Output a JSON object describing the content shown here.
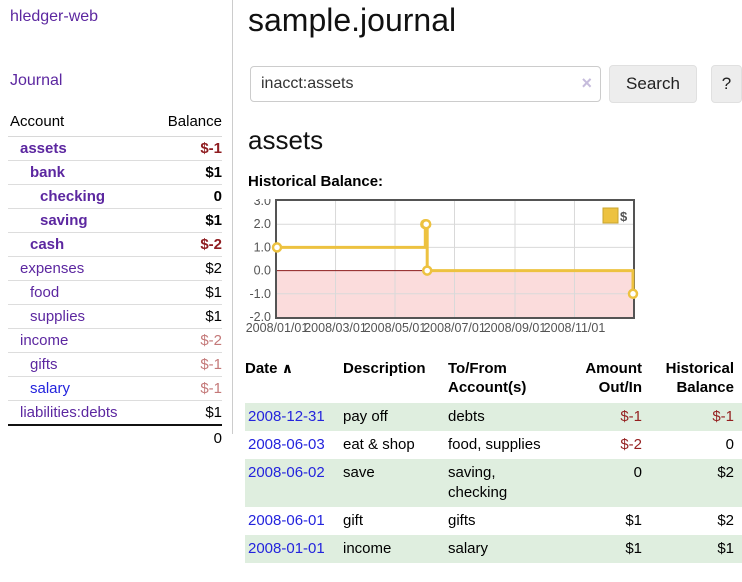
{
  "colors": {
    "link_purple": "#5c27a0",
    "link_blue": "#2424dd",
    "negative_dark": "#8f1d21",
    "negative_light": "#c47979",
    "row_green": "#dfeedf",
    "series_gold": "#edc240"
  },
  "sidebar": {
    "app_title": "hledger-web",
    "journal_link": "Journal",
    "table": {
      "account_header": "Account",
      "balance_header": "Balance",
      "rows": [
        {
          "account": "assets",
          "balance": "$-1",
          "indent": 0,
          "bold": true,
          "balance_style": "neg-dark"
        },
        {
          "account": "bank",
          "balance": "$1",
          "indent": 1,
          "bold": true,
          "balance_style": ""
        },
        {
          "account": "checking",
          "balance": "0",
          "indent": 2,
          "bold": true,
          "balance_style": ""
        },
        {
          "account": "saving",
          "balance": "$1",
          "indent": 2,
          "bold": true,
          "balance_style": ""
        },
        {
          "account": "cash",
          "balance": "$-2",
          "indent": 1,
          "bold": true,
          "balance_style": "neg-dark"
        },
        {
          "account": "expenses",
          "balance": "$2",
          "indent": 0,
          "bold": false,
          "balance_style": ""
        },
        {
          "account": "food",
          "balance": "$1",
          "indent": 1,
          "bold": false,
          "balance_style": ""
        },
        {
          "account": "supplies",
          "balance": "$1",
          "indent": 1,
          "bold": false,
          "balance_style": ""
        },
        {
          "account": "income",
          "balance": "$-2",
          "indent": 0,
          "bold": false,
          "balance_style": "neg-light"
        },
        {
          "account": "gifts",
          "balance": "$-1",
          "indent": 1,
          "bold": false,
          "balance_style": "neg-light"
        },
        {
          "account": "salary",
          "balance": "$-1",
          "indent": 1,
          "bold": false,
          "balance_style": "neg-light",
          "link_color": "blue"
        },
        {
          "account": "liabilities:debts",
          "balance": "$1",
          "indent": 0,
          "bold": false,
          "balance_style": ""
        }
      ],
      "total": "0"
    }
  },
  "main": {
    "title": "sample.journal",
    "search": {
      "value": "inacct:assets",
      "clear_icon": "×",
      "button_label": "Search",
      "help_label": "?"
    },
    "heading": "assets",
    "chart_title": "Historical Balance:"
  },
  "chart_data": {
    "type": "line",
    "style": "step",
    "title": "Historical Balance",
    "x_range": [
      "2008-01-01",
      "2008-12-31"
    ],
    "y_range": [
      -2,
      3
    ],
    "y_ticks": [
      "3.0",
      "2.0",
      "1.0",
      "0.0",
      "-1.0",
      "-2.0"
    ],
    "x_ticks": [
      {
        "date": "2008-01-01",
        "label": "2008/01/01"
      },
      {
        "date": "2008-03-01",
        "label": "2008/03/01"
      },
      {
        "date": "2008-05-01",
        "label": "2008/05/01"
      },
      {
        "date": "2008-07-01",
        "label": "2008/07/01"
      },
      {
        "date": "2008-09-01",
        "label": "2008/09/01"
      },
      {
        "date": "2008-11-01",
        "label": "2008/11/01"
      }
    ],
    "series": [
      {
        "name": "$",
        "color": "#edc240",
        "points": [
          [
            "2008-01-01",
            1
          ],
          [
            "2008-06-01",
            2
          ],
          [
            "2008-06-02",
            2
          ],
          [
            "2008-06-03",
            0
          ],
          [
            "2008-12-31",
            -1
          ]
        ]
      }
    ],
    "legend": {
      "label": "$",
      "position": "top-right"
    },
    "grid": true,
    "grid_color": "#d9d9d9",
    "border_color": "#545454",
    "tick_color": "#545454",
    "zero_line_color": "#8b1a1a",
    "negative_region_color": "#fbdcdc"
  },
  "register": {
    "headers": {
      "date": "Date",
      "sort_icon": "∧",
      "description": "Description",
      "tofrom": "To/From Account(s)",
      "amount": "Amount Out/In",
      "balance": "Historical Balance"
    },
    "rows": [
      {
        "date": "2008-12-31",
        "description": "pay off",
        "accounts": "debts",
        "amount": "$-1",
        "amount_neg": true,
        "balance": "$-1",
        "balance_neg": true
      },
      {
        "date": "2008-06-03",
        "description": "eat & shop",
        "accounts": "food, supplies",
        "amount": "$-2",
        "amount_neg": true,
        "balance": "0",
        "balance_neg": false
      },
      {
        "date": "2008-06-02",
        "description": "save",
        "accounts": "saving, checking",
        "amount": "0",
        "amount_neg": false,
        "balance": "$2",
        "balance_neg": false
      },
      {
        "date": "2008-06-01",
        "description": "gift",
        "accounts": "gifts",
        "amount": "$1",
        "amount_neg": false,
        "balance": "$2",
        "balance_neg": false
      },
      {
        "date": "2008-01-01",
        "description": "income",
        "accounts": "salary",
        "amount": "$1",
        "amount_neg": false,
        "balance": "$1",
        "balance_neg": false
      }
    ]
  }
}
